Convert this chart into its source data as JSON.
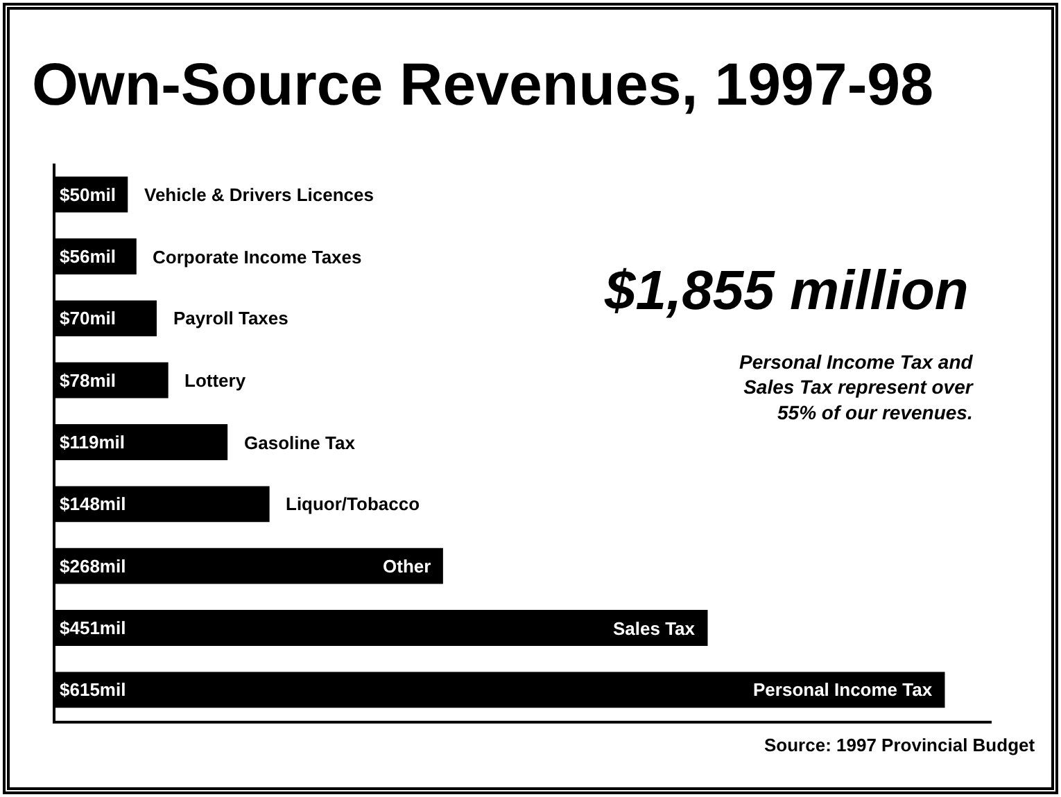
{
  "chart_data": {
    "type": "bar",
    "orientation": "horizontal",
    "title": "Own-Source Revenues, 1997-98",
    "categories": [
      "Vehicle & Drivers Licences",
      "Corporate Income Taxes",
      "Payroll Taxes",
      "Lottery",
      "Gasoline Tax",
      "Liquor/Tobacco",
      "Other",
      "Sales Tax",
      "Personal Income Tax"
    ],
    "values": [
      50,
      56,
      70,
      78,
      119,
      148,
      268,
      451,
      615
    ],
    "value_labels": [
      "$50mil",
      "$56mil",
      "$70mil",
      "$78mil",
      "$119mil",
      "$148mil",
      "$268mil",
      "$451mil",
      "$615mil"
    ],
    "color": "#000000",
    "annotations": [
      "$1,855 million",
      "Personal Income Tax and Sales Tax represent over 55% of our revenues.",
      "Source: 1997 Provincial Budget"
    ]
  }
}
